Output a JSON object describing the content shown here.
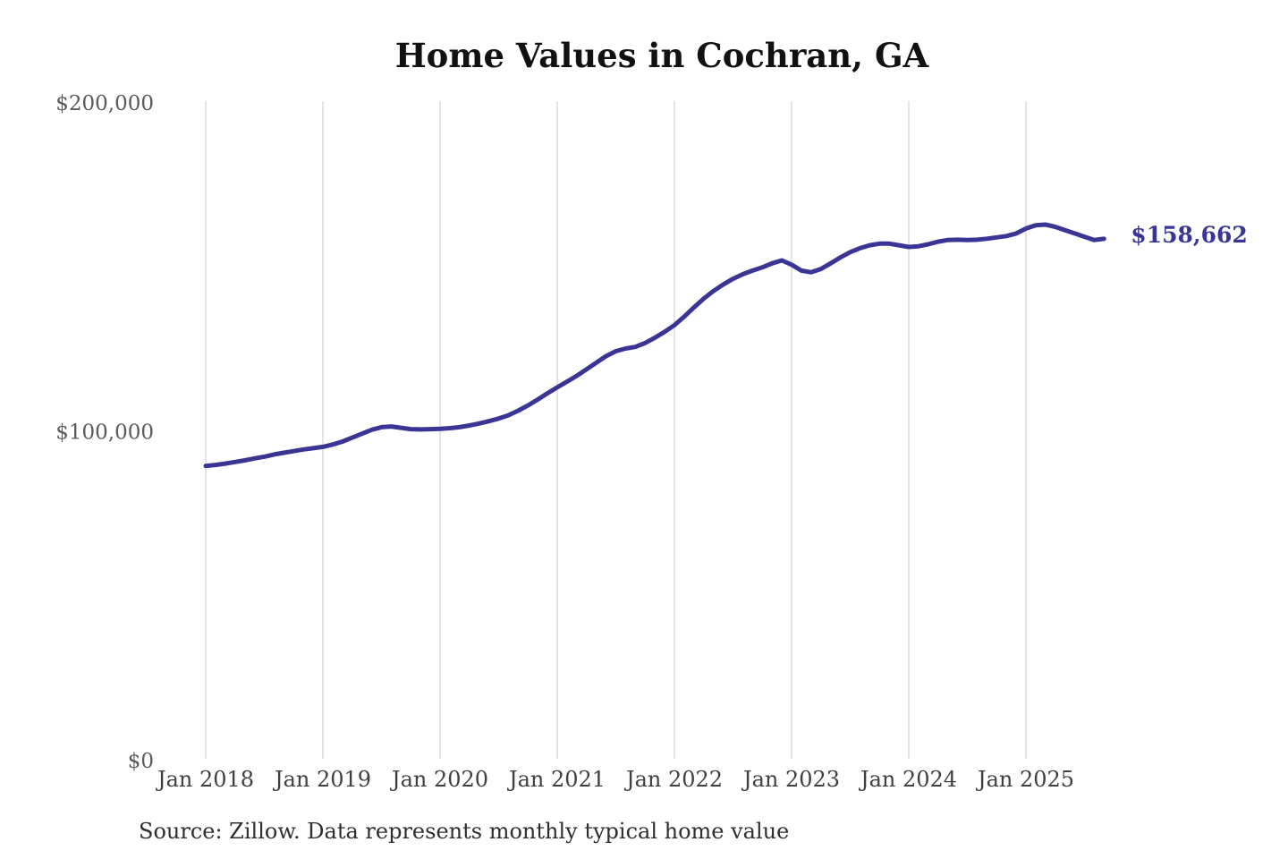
{
  "chart_data": {
    "type": "line",
    "title": "Home Values in Cochran, GA",
    "source_note": "Source: Zillow. Data represents monthly typical home value",
    "legend": "none",
    "grid": "vertical",
    "line_color": "#3a3494",
    "grid_color": "#c9c9c9",
    "end_label": "$158,662",
    "latest_value": 158662,
    "ylim": [
      0,
      200000
    ],
    "y_tick_values": [
      0,
      100000,
      200000
    ],
    "y_tick_labels": [
      "$0",
      "$100,000",
      "$200,000"
    ],
    "x_tick_labels": [
      "Jan 2018",
      "Jan 2019",
      "Jan 2020",
      "Jan 2021",
      "Jan 2022",
      "Jan 2023",
      "Jan 2024",
      "Jan 2025"
    ],
    "series": [
      {
        "name": "Monthly typical home value",
        "months": [
          "Jan 2018",
          "Feb 2018",
          "Mar 2018",
          "Apr 2018",
          "May 2018",
          "Jun 2018",
          "Jul 2018",
          "Aug 2018",
          "Sep 2018",
          "Oct 2018",
          "Nov 2018",
          "Dec 2018",
          "Jan 2019",
          "Feb 2019",
          "Mar 2019",
          "Apr 2019",
          "May 2019",
          "Jun 2019",
          "Jul 2019",
          "Aug 2019",
          "Sep 2019",
          "Oct 2019",
          "Nov 2019",
          "Dec 2019",
          "Jan 2020",
          "Feb 2020",
          "Mar 2020",
          "Apr 2020",
          "May 2020",
          "Jun 2020",
          "Jul 2020",
          "Aug 2020",
          "Sep 2020",
          "Oct 2020",
          "Nov 2020",
          "Dec 2020",
          "Jan 2021",
          "Feb 2021",
          "Mar 2021",
          "Apr 2021",
          "May 2021",
          "Jun 2021",
          "Jul 2021",
          "Aug 2021",
          "Sep 2021",
          "Oct 2021",
          "Nov 2021",
          "Dec 2021",
          "Jan 2022",
          "Feb 2022",
          "Mar 2022",
          "Apr 2022",
          "May 2022",
          "Jun 2022",
          "Jul 2022",
          "Aug 2022",
          "Sep 2022",
          "Oct 2022",
          "Nov 2022",
          "Dec 2022",
          "Jan 2023",
          "Feb 2023",
          "Mar 2023",
          "Apr 2023",
          "May 2023",
          "Jun 2023",
          "Jul 2023",
          "Aug 2023",
          "Sep 2023",
          "Oct 2023",
          "Nov 2023",
          "Dec 2023",
          "Jan 2024",
          "Feb 2024",
          "Mar 2024",
          "Apr 2024",
          "May 2024",
          "Jun 2024",
          "Jul 2024",
          "Aug 2024",
          "Sep 2024",
          "Oct 2024",
          "Nov 2024",
          "Dec 2024",
          "Jan 2025",
          "Feb 2025",
          "Mar 2025",
          "Apr 2025",
          "May 2025",
          "Jun 2025",
          "Jul 2025",
          "Aug 2025",
          "Sep 2025"
        ],
        "values": [
          89600,
          89900,
          90300,
          90800,
          91300,
          91900,
          92400,
          93100,
          93600,
          94100,
          94600,
          95000,
          95400,
          96100,
          97000,
          98200,
          99400,
          100600,
          101400,
          101600,
          101200,
          100800,
          100700,
          100800,
          100900,
          101100,
          101400,
          101900,
          102500,
          103200,
          104000,
          105000,
          106400,
          108000,
          109800,
          111700,
          113500,
          115200,
          117000,
          119000,
          121000,
          123000,
          124500,
          125300,
          125800,
          127000,
          128600,
          130400,
          132400,
          135000,
          137800,
          140500,
          142800,
          144800,
          146500,
          147900,
          149000,
          150000,
          151200,
          152100,
          150800,
          149000,
          148500,
          149500,
          151200,
          153000,
          154600,
          155800,
          156700,
          157200,
          157200,
          156700,
          156200,
          156400,
          157000,
          157800,
          158300,
          158400,
          158300,
          158400,
          158700,
          159100,
          159500,
          160300,
          161800,
          162800,
          163000,
          162300,
          161300,
          160300,
          159300,
          158300,
          158662
        ]
      }
    ]
  }
}
